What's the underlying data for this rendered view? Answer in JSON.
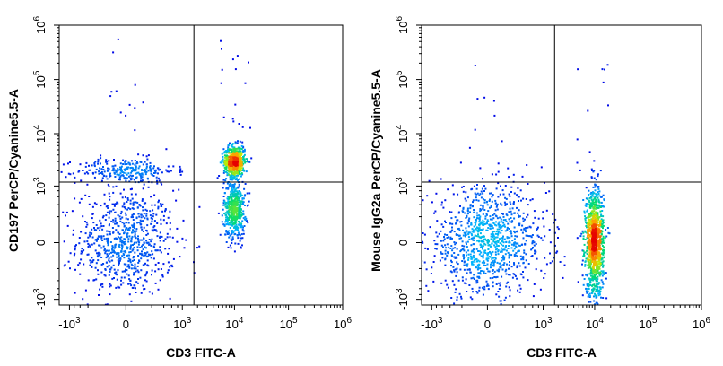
{
  "chart_data": [
    {
      "type": "scatter",
      "subtype": "flow-cytometry-density-dot-plot",
      "xlabel": "CD3 FITC-A",
      "ylabel": "CD197 PerCP/Cyanine5.5-A",
      "x_scale": "biexponential",
      "y_scale": "biexponential",
      "x_ticks": [
        {
          "value": -1000,
          "base": "-10",
          "exp": "3"
        },
        {
          "value": 0,
          "base": "0",
          "exp": ""
        },
        {
          "value": 1000,
          "base": "10",
          "exp": "3"
        },
        {
          "value": 10000,
          "base": "10",
          "exp": "4"
        },
        {
          "value": 100000,
          "base": "10",
          "exp": "5"
        },
        {
          "value": 1000000,
          "base": "10",
          "exp": "6"
        }
      ],
      "y_ticks": [
        {
          "value": -1000,
          "base": "-10",
          "exp": "3"
        },
        {
          "value": 0,
          "base": "0",
          "exp": ""
        },
        {
          "value": 1000,
          "base": "10",
          "exp": "3"
        },
        {
          "value": 10000,
          "base": "10",
          "exp": "4"
        },
        {
          "value": 100000,
          "base": "10",
          "exp": "5"
        },
        {
          "value": 1000000,
          "base": "10",
          "exp": "6"
        }
      ],
      "xlim": [
        -1600,
        1000000
      ],
      "ylim": [
        -1300,
        1000000
      ],
      "quadrant_gate": {
        "x": 1700,
        "y": 1200
      },
      "populations": [
        {
          "x_center": 0,
          "y_center": 0,
          "x_spread": 300,
          "y_spread": 350,
          "share": 0.34
        },
        {
          "x_center": 0,
          "y_center": 2000,
          "x_spread": 300,
          "y_spread": 900,
          "share": 0.12
        },
        {
          "x_center": 10000,
          "y_center": 3000,
          "x_spread": 3500,
          "y_spread": 1700,
          "share": 0.3
        },
        {
          "x_center": 10000,
          "y_center": 300,
          "x_spread": 3500,
          "y_spread": 500,
          "share": 0.24
        }
      ],
      "grid": false,
      "legend": "none"
    },
    {
      "type": "scatter",
      "subtype": "flow-cytometry-density-dot-plot",
      "xlabel": "CD3 FITC-A",
      "ylabel": "Mouse IgG2a PerCP/Cyanine5.5-A",
      "x_scale": "biexponential",
      "y_scale": "biexponential",
      "x_ticks": [
        {
          "value": -1000,
          "base": "-10",
          "exp": "3"
        },
        {
          "value": 0,
          "base": "0",
          "exp": ""
        },
        {
          "value": 1000,
          "base": "10",
          "exp": "3"
        },
        {
          "value": 10000,
          "base": "10",
          "exp": "4"
        },
        {
          "value": 100000,
          "base": "10",
          "exp": "5"
        },
        {
          "value": 1000000,
          "base": "10",
          "exp": "6"
        }
      ],
      "y_ticks": [
        {
          "value": -1000,
          "base": "-10",
          "exp": "3"
        },
        {
          "value": 0,
          "base": "0",
          "exp": ""
        },
        {
          "value": 1000,
          "base": "10",
          "exp": "3"
        },
        {
          "value": 10000,
          "base": "10",
          "exp": "4"
        },
        {
          "value": 100000,
          "base": "10",
          "exp": "5"
        },
        {
          "value": 1000000,
          "base": "10",
          "exp": "6"
        }
      ],
      "xlim": [
        -1600,
        1000000
      ],
      "ylim": [
        -1300,
        1000000
      ],
      "quadrant_gate": {
        "x": 1700,
        "y": 1200
      },
      "populations": [
        {
          "x_center": 0,
          "y_center": 0,
          "x_spread": 450,
          "y_spread": 350,
          "share": 0.48
        },
        {
          "x_center": 10000,
          "y_center": 0,
          "x_spread": 3000,
          "y_spread": 350,
          "share": 0.52
        }
      ],
      "grid": false,
      "legend": "none"
    }
  ]
}
